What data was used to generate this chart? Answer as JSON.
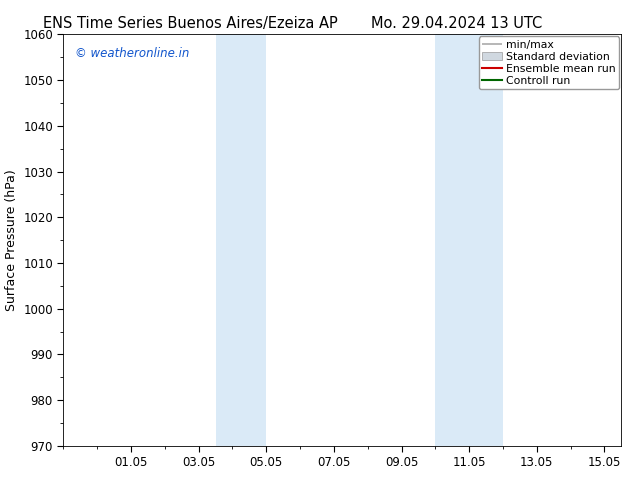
{
  "title_left": "ENS Time Series Buenos Aires/Ezeiza AP",
  "title_right": "Mo. 29.04.2024 13 UTC",
  "ylabel": "Surface Pressure (hPa)",
  "ylim": [
    970,
    1060
  ],
  "yticks": [
    970,
    980,
    990,
    1000,
    1010,
    1020,
    1030,
    1040,
    1050,
    1060
  ],
  "xtick_labels": [
    "01.05",
    "03.05",
    "05.05",
    "07.05",
    "09.05",
    "11.05",
    "13.05",
    "15.05"
  ],
  "xtick_positions": [
    2,
    4,
    6,
    8,
    10,
    12,
    14,
    16
  ],
  "xlim": [
    0,
    16.5
  ],
  "shaded_bands": [
    {
      "x_start": 4.5,
      "x_end": 6.0
    },
    {
      "x_start": 11.0,
      "x_end": 13.0
    }
  ],
  "shade_color": "#daeaf7",
  "watermark_text": "© weatheronline.in",
  "watermark_color": "#1155cc",
  "legend_entries": [
    {
      "label": "min/max",
      "color": "#aaaaaa",
      "lw": 1.2,
      "type": "line_capped"
    },
    {
      "label": "Standard deviation",
      "color": "#d0d8e0",
      "lw": 6,
      "type": "patch"
    },
    {
      "label": "Ensemble mean run",
      "color": "#cc0000",
      "lw": 1.5,
      "type": "line"
    },
    {
      "label": "Controll run",
      "color": "#006600",
      "lw": 1.5,
      "type": "line"
    }
  ],
  "bg_color": "#ffffff",
  "title_fontsize": 10.5,
  "label_fontsize": 9,
  "tick_fontsize": 8.5,
  "legend_fontsize": 7.8
}
